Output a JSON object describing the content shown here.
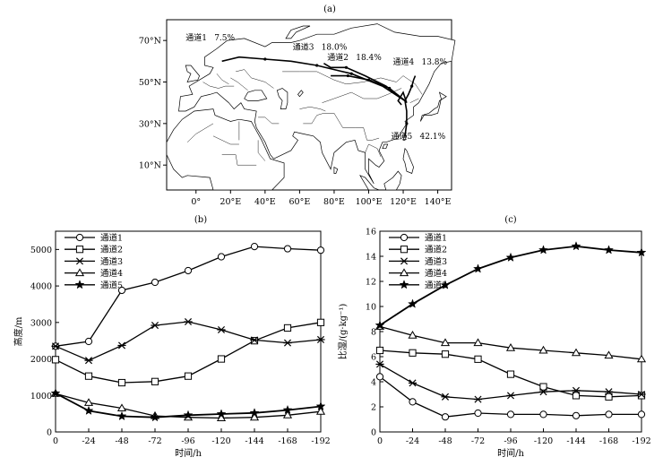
{
  "figure": {
    "panels": {
      "a": {
        "label": "(a)"
      },
      "b": {
        "label": "(b)"
      },
      "c": {
        "label": "(c)"
      }
    },
    "colors": {
      "line": "#000000",
      "map_land": "#ffffff",
      "map_border": "#000000"
    }
  },
  "map": {
    "lat_ticks": [
      "70°N",
      "50°N",
      "30°N",
      "10°N"
    ],
    "lon_ticks": [
      "0°",
      "20°E",
      "40°E",
      "60°E",
      "80°E",
      "100°E",
      "120°E",
      "140°E"
    ],
    "lon_range": [
      -17,
      148
    ],
    "lat_range": [
      -2,
      80
    ],
    "channel_labels": [
      {
        "name": "通道1",
        "pct": "7.5%"
      },
      {
        "name": "通道3",
        "pct": "18.0%"
      },
      {
        "name": "通道2",
        "pct": "18.4%"
      },
      {
        "name": "通道4",
        "pct": "13.8%"
      },
      {
        "name": "通道5",
        "pct": "42.1%"
      }
    ]
  },
  "chart_data": [
    {
      "type": "line",
      "panel": "(b)",
      "xlabel": "时间/h",
      "ylabel": "高度/m",
      "x": [
        0,
        -24,
        -48,
        -72,
        -96,
        -120,
        -144,
        -168,
        -192
      ],
      "x_tick_labels": [
        "0",
        "-24",
        "-48",
        "-72",
        "-96",
        "-120",
        "-144",
        "-168",
        "-192"
      ],
      "xlim": [
        0,
        -192
      ],
      "ylim": [
        0,
        5500
      ],
      "y_ticks": [
        0,
        1000,
        2000,
        3000,
        4000,
        5000
      ],
      "legend": "top-left",
      "series": [
        {
          "name": "通道1",
          "marker": "circle",
          "values": [
            2350,
            2480,
            3880,
            4100,
            4420,
            4800,
            5080,
            5020,
            4980
          ]
        },
        {
          "name": "通道2",
          "marker": "square",
          "values": [
            1980,
            1530,
            1350,
            1380,
            1530,
            2000,
            2500,
            2850,
            3000
          ]
        },
        {
          "name": "通道3",
          "marker": "asterisk",
          "values": [
            2350,
            1960,
            2370,
            2920,
            3020,
            2800,
            2520,
            2440,
            2530
          ]
        },
        {
          "name": "通道4",
          "marker": "triangle",
          "values": [
            1050,
            800,
            650,
            440,
            400,
            380,
            400,
            460,
            560
          ]
        },
        {
          "name": "通道5",
          "marker": "star",
          "values": [
            1060,
            580,
            430,
            400,
            460,
            490,
            520,
            600,
            700
          ]
        }
      ]
    },
    {
      "type": "line",
      "panel": "(c)",
      "xlabel": "时间/h",
      "ylabel": "比湿/(g·kg⁻¹)",
      "x": [
        0,
        -24,
        -48,
        -72,
        -96,
        -120,
        -144,
        -168,
        -192
      ],
      "x_tick_labels": [
        "0",
        "-24",
        "-48",
        "-72",
        "-96",
        "-120",
        "-144",
        "-168",
        "-192"
      ],
      "xlim": [
        0,
        -192
      ],
      "ylim": [
        0,
        16
      ],
      "y_ticks": [
        0,
        2,
        4,
        6,
        8,
        10,
        12,
        14,
        16
      ],
      "legend": "top-left",
      "series": [
        {
          "name": "通道1",
          "marker": "circle",
          "values": [
            4.4,
            2.4,
            1.2,
            1.5,
            1.4,
            1.4,
            1.3,
            1.4,
            1.4
          ]
        },
        {
          "name": "通道2",
          "marker": "square",
          "values": [
            6.5,
            6.3,
            6.2,
            5.8,
            4.6,
            3.6,
            2.9,
            2.8,
            2.9
          ]
        },
        {
          "name": "通道3",
          "marker": "asterisk",
          "values": [
            5.4,
            3.9,
            2.8,
            2.6,
            2.9,
            3.2,
            3.3,
            3.2,
            3.0
          ]
        },
        {
          "name": "通道4",
          "marker": "triangle",
          "values": [
            8.4,
            7.7,
            7.1,
            7.1,
            6.7,
            6.5,
            6.3,
            6.1,
            5.8
          ]
        },
        {
          "name": "通道5",
          "marker": "star",
          "values": [
            8.5,
            10.2,
            11.7,
            13.0,
            13.9,
            14.5,
            14.8,
            14.5,
            14.3
          ]
        }
      ]
    }
  ]
}
